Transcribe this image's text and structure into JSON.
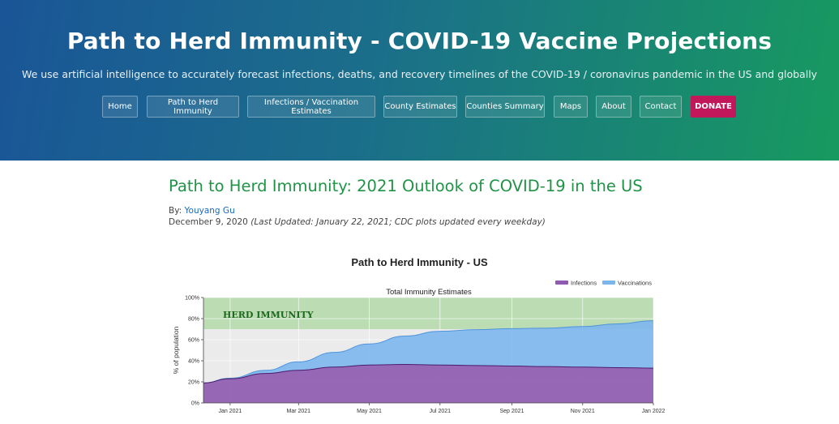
{
  "header": {
    "title": "Path to Herd Immunity - COVID-19 Vaccine Projections",
    "tagline": "We use artificial intelligence to accurately forecast infections, deaths, and recovery timelines of the COVID-19 / coronavirus pandemic in the US and globally"
  },
  "nav": {
    "items": [
      {
        "label": "Home"
      },
      {
        "label": "Path to Herd Immunity"
      },
      {
        "label": "Infections / Vaccination Estimates"
      },
      {
        "label": "County Estimates"
      },
      {
        "label": "Counties Summary"
      },
      {
        "label": "Maps"
      },
      {
        "label": "About"
      },
      {
        "label": "Contact"
      }
    ],
    "donate": "DONATE"
  },
  "article": {
    "title": "Path to Herd Immunity: 2021 Outlook of COVID-19 in the US",
    "by_prefix": "By: ",
    "author": "Youyang Gu",
    "date": "December 9, 2020",
    "updated": "(Last Updated: January 22, 2021; CDC plots updated every weekday)"
  },
  "chart_header": "Path to Herd Immunity - US",
  "colors": {
    "infections": "#8e5bb0",
    "vaccinations": "#7db6ee",
    "herd_band": "#bcdcb4",
    "herd_text": "#1e6a1e",
    "title_green": "#1f9447",
    "donate": "#c2185b"
  },
  "chart_data": {
    "type": "area",
    "title": "Total Immunity Estimates",
    "ylabel": "% of population",
    "xlabel": "",
    "ylim": [
      0,
      100
    ],
    "yticks": [
      "0%",
      "20%",
      "40%",
      "60%",
      "80%",
      "100%"
    ],
    "xlim": [
      "2020-12-09",
      "2022-01-01"
    ],
    "xticks": [
      {
        "date": "2021-01-01",
        "label": "Jan 2021"
      },
      {
        "date": "2021-03-01",
        "label": "Mar 2021"
      },
      {
        "date": "2021-05-01",
        "label": "May 2021"
      },
      {
        "date": "2021-07-01",
        "label": "Jul 2021"
      },
      {
        "date": "2021-09-01",
        "label": "Sep 2021"
      },
      {
        "date": "2021-11-01",
        "label": "Nov 2021"
      },
      {
        "date": "2022-01-01",
        "label": "Jan 2022"
      }
    ],
    "herd_immunity": {
      "label": "HERD IMMUNITY",
      "range": [
        70,
        100
      ]
    },
    "legend": "top-right",
    "x": [
      "2020-12-09",
      "2021-01-01",
      "2021-02-01",
      "2021-03-01",
      "2021-04-01",
      "2021-05-01",
      "2021-06-01",
      "2021-07-01",
      "2021-08-01",
      "2021-09-01",
      "2021-10-01",
      "2021-11-01",
      "2021-12-01",
      "2022-01-01"
    ],
    "series": [
      {
        "name": "Infections",
        "values": [
          19,
          23,
          28,
          31,
          34,
          36,
          36.5,
          36,
          35.5,
          35,
          34.5,
          34,
          33.5,
          33
        ]
      },
      {
        "name": "Vaccinations",
        "values": [
          0,
          0.5,
          3,
          8,
          14,
          20,
          27,
          32,
          34,
          35.5,
          36.5,
          38.5,
          41.5,
          45
        ]
      }
    ]
  }
}
